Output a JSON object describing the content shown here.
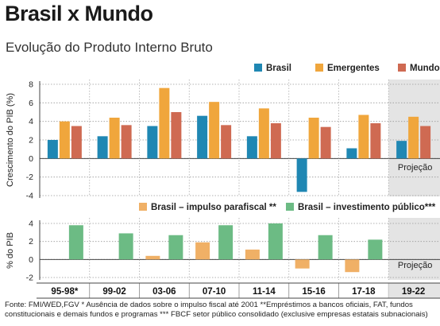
{
  "title": "Brasil x Mundo",
  "subtitle": "Evolução do Produto Interno Bruto",
  "source": "Fonte: FMI/WED,FGV * Ausência de dados sobre o impulso fiscal até 2001 **Empréstimos a bancos oficiais, FAT, fundos constitucionais e demais fundos e programas *** FBCF setor público consolidado (exclusive empresas estatais subnacionais)",
  "colors": {
    "brasil": "#1f87b3",
    "emergentes": "#f0a63c",
    "mundo": "#cf6a52",
    "parafiscal": "#f0b066",
    "investimento": "#6cbb84",
    "projection_bg": "#e4e4e4"
  },
  "chart_data": [
    {
      "type": "bar",
      "ylabel": "Crescimento do PIB (%)",
      "ylim": [
        -4,
        8
      ],
      "yticks": [
        8,
        6,
        4,
        2,
        0,
        -2,
        -4
      ],
      "grid": true,
      "legend_position": "top-right",
      "categories": [
        "95-98*",
        "99-02",
        "03-06",
        "07-10",
        "11-14",
        "15-16",
        "17-18",
        "19-22"
      ],
      "projection_label": "Projeção",
      "series": [
        {
          "name": "Brasil",
          "color_key": "brasil",
          "values": [
            2.0,
            2.4,
            3.5,
            4.6,
            2.4,
            -3.6,
            1.1,
            1.9
          ]
        },
        {
          "name": "Emergentes",
          "color_key": "emergentes",
          "values": [
            4.0,
            4.4,
            7.6,
            6.1,
            5.4,
            4.4,
            4.7,
            4.5
          ]
        },
        {
          "name": "Mundo",
          "color_key": "mundo",
          "values": [
            3.5,
            3.6,
            5.0,
            3.6,
            3.8,
            3.4,
            3.8,
            3.5
          ]
        }
      ]
    },
    {
      "type": "bar",
      "ylabel": "% do PIB",
      "ylim": [
        -2,
        4
      ],
      "yticks": [
        4,
        2,
        0,
        -2
      ],
      "grid": true,
      "legend_position": "top-right",
      "categories": [
        "95-98*",
        "99-02",
        "03-06",
        "07-10",
        "11-14",
        "15-16",
        "17-18",
        "19-22"
      ],
      "projection_label": "Projeção",
      "series": [
        {
          "name": "Brasil – impulso parafiscal **",
          "color_key": "parafiscal",
          "values": [
            null,
            null,
            0.4,
            1.9,
            1.1,
            -1.0,
            -1.4,
            null
          ]
        },
        {
          "name": "Brasil – investimento público***",
          "color_key": "investimento",
          "values": [
            3.8,
            2.9,
            2.7,
            3.8,
            4.0,
            2.7,
            2.2,
            null
          ]
        }
      ]
    }
  ]
}
